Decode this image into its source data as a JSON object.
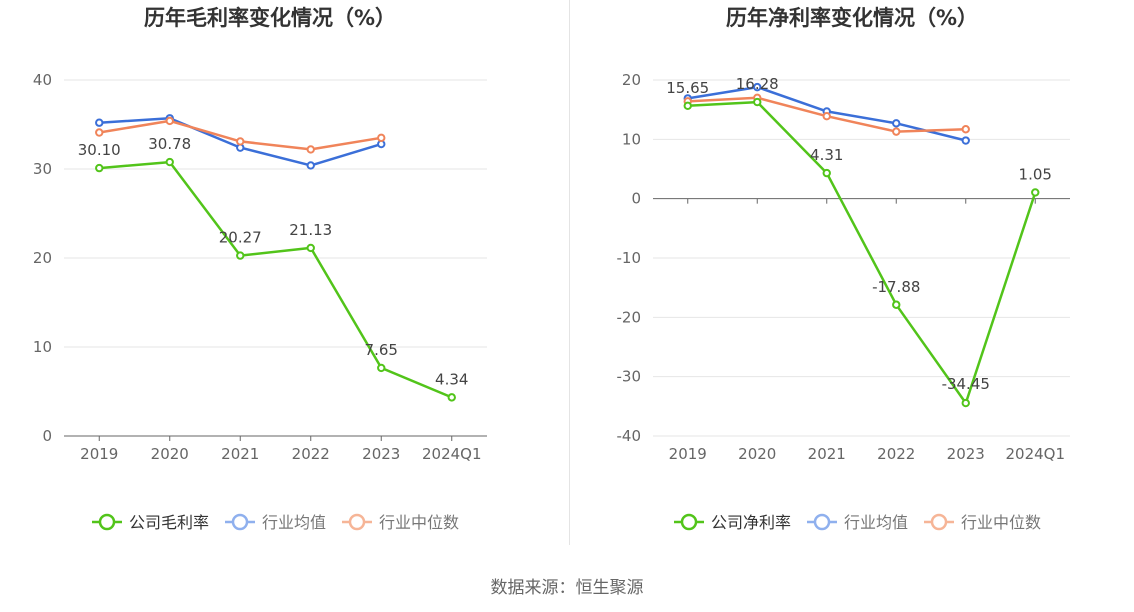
{
  "source": "数据来源：恒生聚源",
  "chart_data": [
    {
      "type": "line",
      "title": "历年毛利率变化情况（%）",
      "categories": [
        "2019",
        "2020",
        "2021",
        "2022",
        "2023",
        "2024Q1"
      ],
      "ylim": [
        0,
        40
      ],
      "yticks": [
        0,
        10,
        20,
        30,
        40
      ],
      "grid": true,
      "legend_position": "bottom",
      "series": [
        {
          "name": "公司毛利率",
          "color": "#52c41a",
          "values": [
            30.1,
            30.78,
            20.27,
            21.13,
            7.65,
            4.34
          ],
          "labels": [
            "30.10",
            "30.78",
            "20.27",
            "21.13",
            "7.65",
            "4.34"
          ]
        },
        {
          "name": "行业均值",
          "color": "#3b6fd8",
          "values": [
            35.2,
            35.7,
            32.4,
            30.4,
            32.8,
            null
          ]
        },
        {
          "name": "行业中位数",
          "color": "#f0845a",
          "values": [
            34.1,
            35.4,
            33.1,
            32.2,
            33.5,
            null
          ]
        }
      ]
    },
    {
      "type": "line",
      "title": "历年净利率变化情况（%）",
      "categories": [
        "2019",
        "2020",
        "2021",
        "2022",
        "2023",
        "2024Q1"
      ],
      "ylim": [
        -40,
        20
      ],
      "yticks": [
        -40,
        -30,
        -20,
        -10,
        0,
        10,
        20
      ],
      "grid": true,
      "legend_position": "bottom",
      "series": [
        {
          "name": "公司净利率",
          "color": "#52c41a",
          "values": [
            15.65,
            16.28,
            4.31,
            -17.88,
            -34.45,
            1.05
          ],
          "labels": [
            "15.65",
            "16.28",
            "4.31",
            "-17.88",
            "-34.45",
            "1.05"
          ]
        },
        {
          "name": "行业均值",
          "color": "#3b6fd8",
          "values": [
            16.9,
            18.8,
            14.7,
            12.7,
            9.8,
            null
          ]
        },
        {
          "name": "行业中位数",
          "color": "#f0845a",
          "values": [
            16.4,
            17.0,
            13.9,
            11.3,
            11.7,
            null
          ]
        }
      ]
    }
  ]
}
